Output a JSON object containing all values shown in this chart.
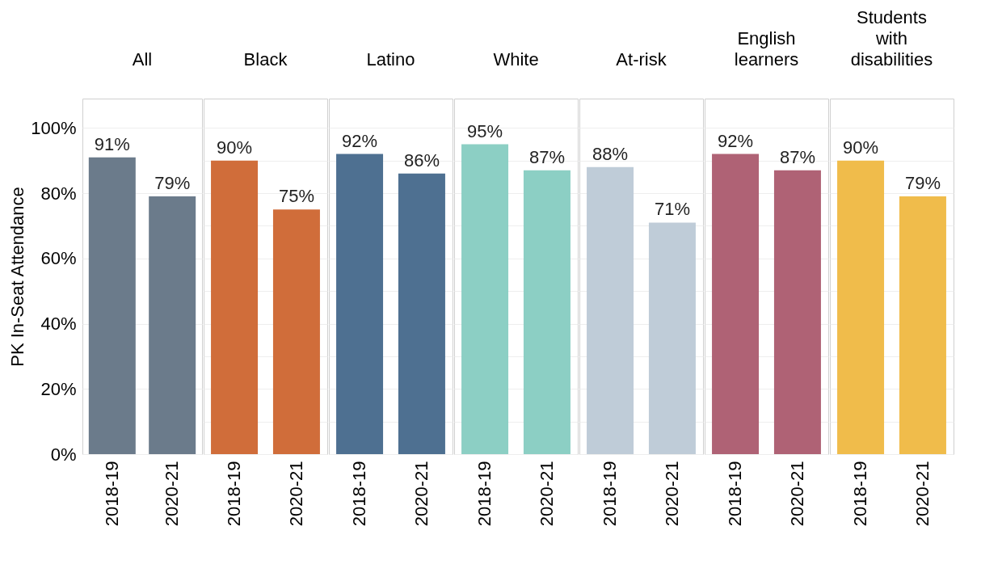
{
  "chart_data": [
    {
      "type": "bar",
      "title": "All",
      "ylabel": "PK In-Seat Attendance",
      "categories": [
        "2018-19",
        "2020-21"
      ],
      "values": [
        91,
        79
      ],
      "colors": [
        "#6b7b8b",
        "#6b7b8b"
      ],
      "value_labels": [
        "91%",
        "79%"
      ],
      "ylim": [
        0,
        109
      ],
      "yticks": [
        {
          "value": 0,
          "label": "0%"
        },
        {
          "value": 20,
          "label": "20%"
        },
        {
          "value": 40,
          "label": "40%"
        },
        {
          "value": 60,
          "label": "60%"
        },
        {
          "value": 80,
          "label": "80%"
        },
        {
          "value": 100,
          "label": "100%"
        }
      ],
      "grid": "y"
    },
    {
      "type": "bar",
      "title": "Black",
      "categories": [
        "2018-19",
        "2020-21"
      ],
      "values": [
        90,
        75
      ],
      "colors": [
        "#d06d3a",
        "#d06d3a"
      ],
      "value_labels": [
        "90%",
        "75%"
      ],
      "ylim": [
        0,
        109
      ],
      "grid": "y",
      "tick_labels": "x"
    },
    {
      "type": "bar",
      "title": "Latino",
      "categories": [
        "2018-19",
        "2020-21"
      ],
      "values": [
        92,
        86
      ],
      "colors": [
        "#4e7091",
        "#4e7091"
      ],
      "value_labels": [
        "92%",
        "86%"
      ],
      "ylim": [
        0,
        109
      ],
      "grid": "y",
      "tick_labels": "x"
    },
    {
      "type": "bar",
      "title": "White",
      "categories": [
        "2018-19",
        "2020-21"
      ],
      "values": [
        95,
        87
      ],
      "colors": [
        "#8ccfc4",
        "#8ccfc4"
      ],
      "value_labels": [
        "95%",
        "87%"
      ],
      "ylim": [
        0,
        109
      ],
      "grid": "y",
      "tick_labels": "x"
    },
    {
      "type": "bar",
      "title": "At-risk",
      "categories": [
        "2018-19",
        "2020-21"
      ],
      "values": [
        88,
        71
      ],
      "colors": [
        "#bfccd8",
        "#bfccd8"
      ],
      "value_labels": [
        "88%",
        "71%"
      ],
      "ylim": [
        0,
        109
      ],
      "grid": "y",
      "tick_labels": "x"
    },
    {
      "type": "bar",
      "title": "English learners",
      "categories": [
        "2018-19",
        "2020-21"
      ],
      "values": [
        92,
        87
      ],
      "colors": [
        "#af6275",
        "#af6275"
      ],
      "value_labels": [
        "92%",
        "87%"
      ],
      "ylim": [
        0,
        109
      ],
      "grid": "y",
      "tick_labels": "x"
    },
    {
      "type": "bar",
      "title": "Students with disabilities",
      "categories": [
        "2018-19",
        "2020-21"
      ],
      "values": [
        90,
        79
      ],
      "colors": [
        "#f0bc4b",
        "#f0bc4b"
      ],
      "value_labels": [
        "90%",
        "79%"
      ],
      "ylim": [
        0,
        109
      ],
      "grid": "y",
      "tick_labels": "x"
    }
  ]
}
